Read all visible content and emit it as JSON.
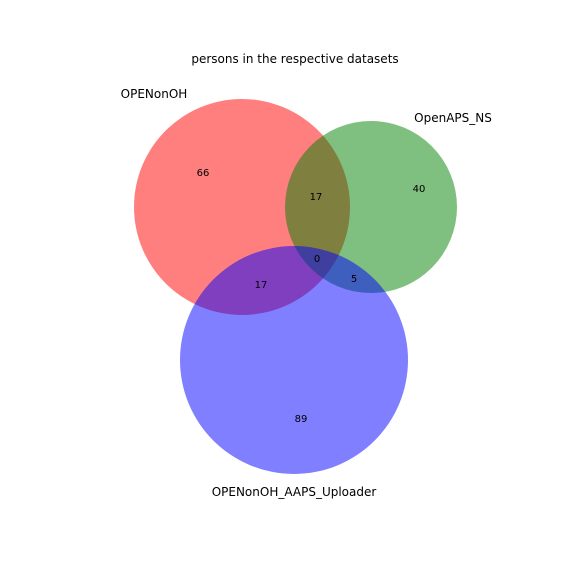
{
  "title": "persons in the respective datasets",
  "sets": [
    {
      "key": "A",
      "label": "OPENonOH",
      "color": "#ff0000"
    },
    {
      "key": "B",
      "label": "OpenAPS_NS",
      "color": "#008000"
    },
    {
      "key": "C",
      "label": "OPENonOH_AAPS_Uploader",
      "color": "#0000ff"
    }
  ],
  "regions": {
    "A_only": "66",
    "B_only": "40",
    "C_only": "89",
    "A_and_B": "17",
    "A_and_C": "17",
    "B_and_C": "5",
    "A_and_B_and_C": "0"
  },
  "styles": {
    "fill_opacity": 0.5,
    "text_color": "#000000",
    "background": "#ffffff"
  }
}
